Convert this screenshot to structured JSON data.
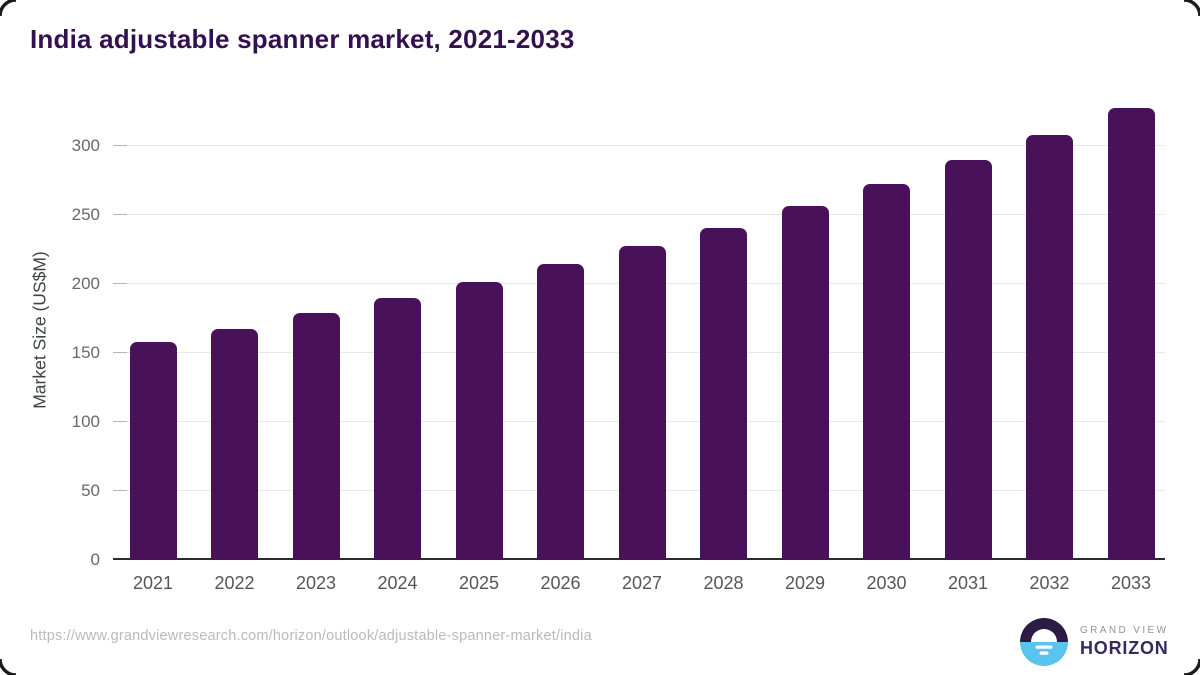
{
  "frame": {
    "border_color": "#1b1b1d"
  },
  "header": {
    "title": "India adjustable spanner market, 2021-2033",
    "title_color": "#33114f"
  },
  "chart_data": {
    "type": "bar",
    "title": "India adjustable spanner market, 2021-2033",
    "categories": [
      "2021",
      "2022",
      "2023",
      "2024",
      "2025",
      "2026",
      "2027",
      "2028",
      "2029",
      "2030",
      "2031",
      "2032",
      "2033"
    ],
    "values": [
      157,
      167,
      178,
      189,
      201,
      214,
      227,
      240,
      256,
      272,
      289,
      307,
      327
    ],
    "xlabel": "",
    "ylabel": "Market Size (US$M)",
    "ylim": [
      0,
      340
    ],
    "y_ticks": [
      0,
      50,
      100,
      150,
      200,
      250,
      300
    ],
    "grid": "horizontal-only",
    "legend": "none",
    "bar_color": "#481159"
  },
  "footer": {
    "source_url": "https://www.grandviewresearch.com/horizon/outlook/adjustable-spanner-market/india",
    "logo": {
      "line1": "GRAND VIEW",
      "line2": "HORIZON",
      "mark_top_color": "#2d1b45",
      "mark_bottom_color": "#5ac3ee"
    }
  }
}
